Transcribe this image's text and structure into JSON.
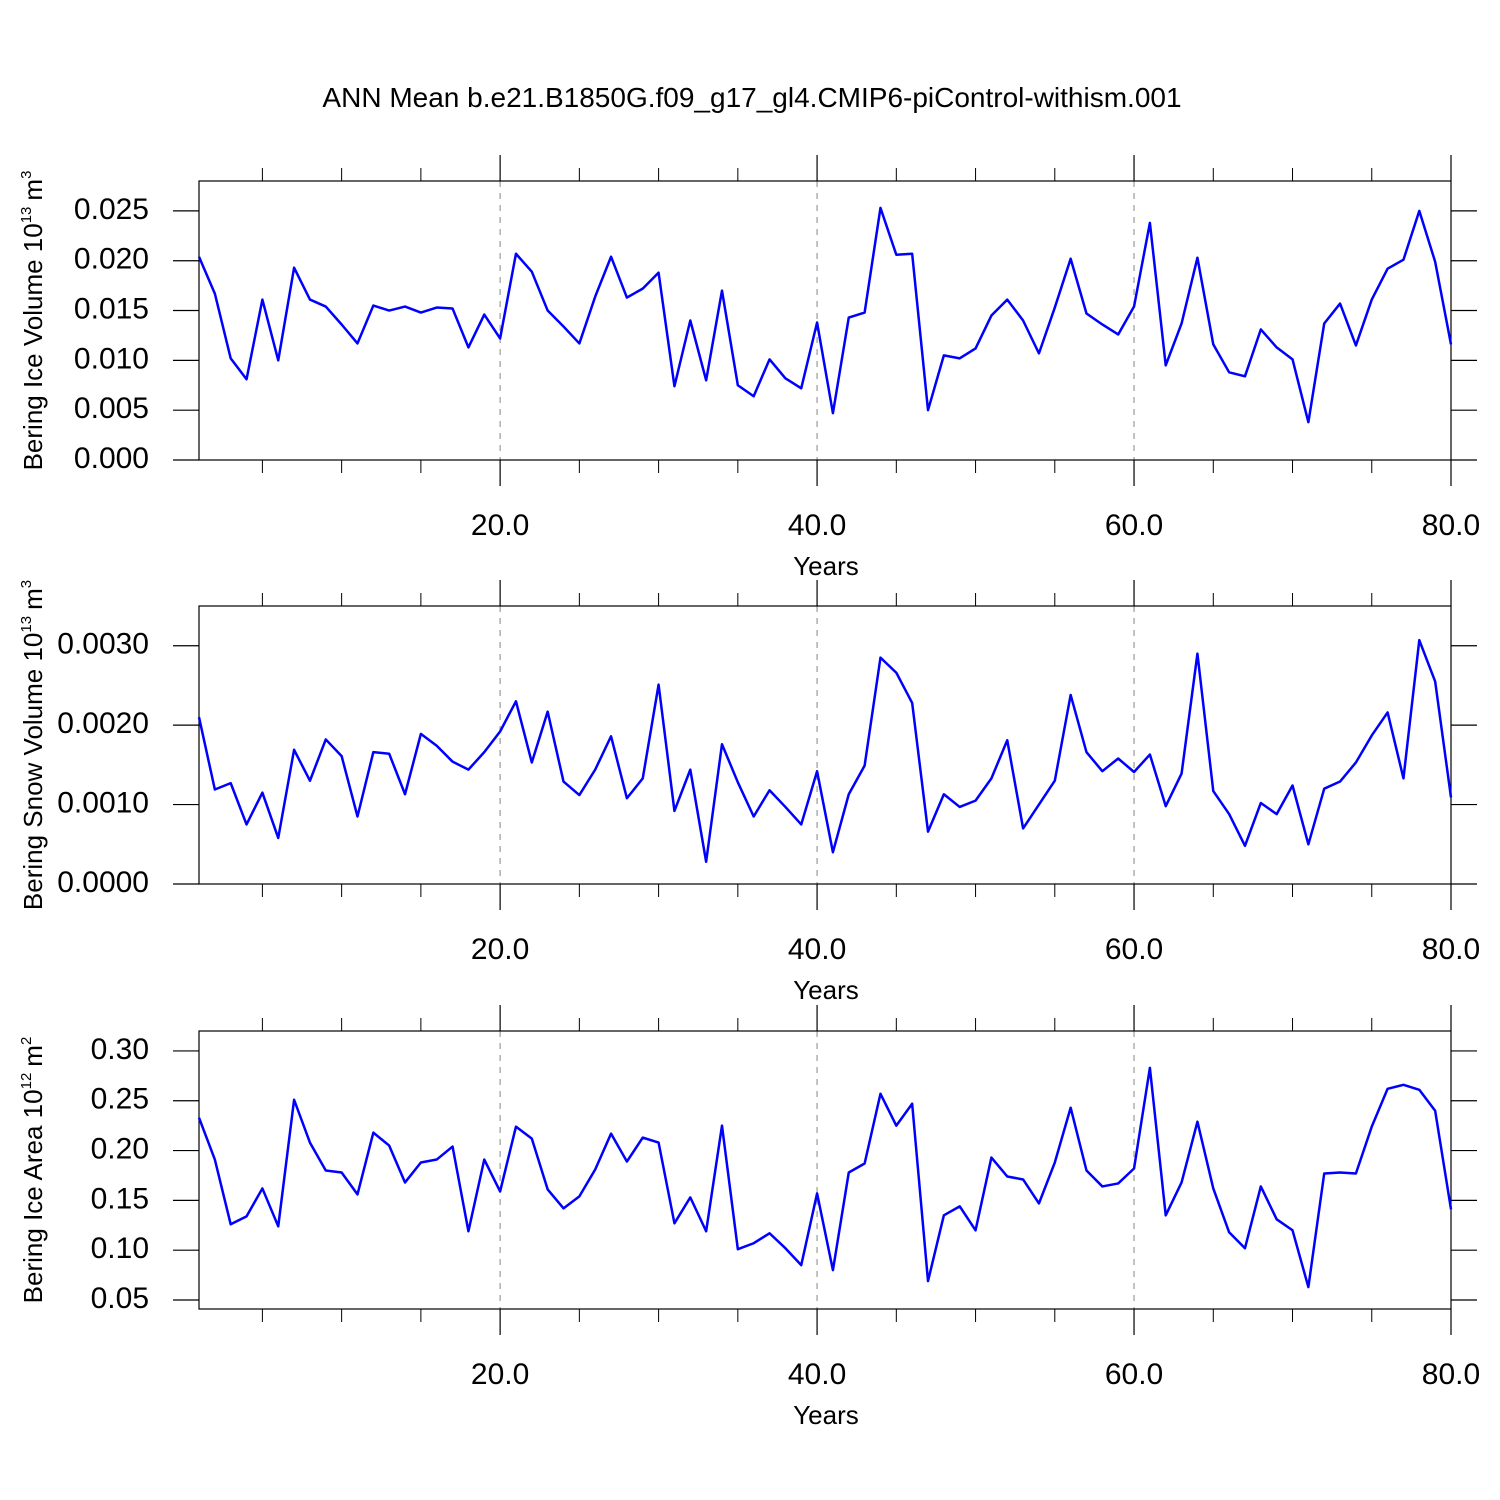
{
  "chart_data": [
    {
      "type": "line",
      "title": "ANN Mean b.e21.B1850G.f09_g17_gl4.CMIP6-piControl-withism.001",
      "ylabel": {
        "text": "Bering Ice Volume 10",
        "exponent": "13",
        "unit": "m",
        "unit_exponent": "3"
      },
      "xlabel": "Years",
      "color": "#0000ff",
      "grid": true,
      "x": [
        1,
        2,
        3,
        4,
        5,
        6,
        7,
        8,
        9,
        10,
        11,
        12,
        13,
        14,
        15,
        16,
        17,
        18,
        19,
        20,
        21,
        22,
        23,
        24,
        25,
        26,
        27,
        28,
        29,
        30,
        31,
        32,
        33,
        34,
        35,
        36,
        37,
        38,
        39,
        40,
        41,
        42,
        43,
        44,
        45,
        46,
        47,
        48,
        49,
        50,
        51,
        52,
        53,
        54,
        55,
        56,
        57,
        58,
        59,
        60,
        61,
        62,
        63,
        64,
        65,
        66,
        67,
        68,
        69,
        70,
        71,
        72,
        73,
        74,
        75,
        76,
        77,
        78,
        79,
        80
      ],
      "values": [
        0.0204,
        0.0167,
        0.0102,
        0.0081,
        0.0161,
        0.01,
        0.0193,
        0.0161,
        0.0154,
        0.0136,
        0.0117,
        0.0155,
        0.015,
        0.0154,
        0.0148,
        0.0153,
        0.0152,
        0.0113,
        0.0146,
        0.0122,
        0.0207,
        0.0189,
        0.015,
        0.0134,
        0.0117,
        0.0164,
        0.0204,
        0.0163,
        0.0172,
        0.0188,
        0.0074,
        0.014,
        0.008,
        0.017,
        0.0075,
        0.0064,
        0.0101,
        0.0082,
        0.0072,
        0.0138,
        0.0047,
        0.0143,
        0.0148,
        0.0253,
        0.0206,
        0.0207,
        0.005,
        0.0105,
        0.0102,
        0.0112,
        0.0145,
        0.0161,
        0.014,
        0.0107,
        0.0153,
        0.0202,
        0.0147,
        0.0136,
        0.0126,
        0.0154,
        0.0238,
        0.0095,
        0.0137,
        0.0203,
        0.0116,
        0.0088,
        0.0084,
        0.0131,
        0.0113,
        0.0101,
        0.0038,
        0.0137,
        0.0157,
        0.0115,
        0.0161,
        0.0192,
        0.0201,
        0.025,
        0.0199,
        0.0116
      ],
      "xlim": [
        1,
        80
      ],
      "ylim": [
        0,
        0.028
      ],
      "xticks": [
        {
          "value": 20,
          "label": "20.0"
        },
        {
          "value": 40,
          "label": "40.0"
        },
        {
          "value": 60,
          "label": "60.0"
        },
        {
          "value": 80,
          "label": "80.0"
        }
      ],
      "xminorticks": [
        5,
        10,
        15,
        25,
        30,
        35,
        45,
        50,
        55,
        65,
        70,
        75
      ],
      "yticks": [
        {
          "value": 0,
          "label": "0.000"
        },
        0.005,
        {
          "value": 0.01,
          "label": "0.010"
        },
        0.015,
        {
          "value": 0.02,
          "label": "0.020"
        },
        0.025
      ]
    },
    {
      "type": "line",
      "ylabel": {
        "text": "Bering Snow Volume 10",
        "exponent": "13",
        "unit": "m",
        "unit_exponent": "3"
      },
      "xlabel": "Years",
      "color": "#0000ff",
      "grid": true,
      "x": [
        1,
        2,
        3,
        4,
        5,
        6,
        7,
        8,
        9,
        10,
        11,
        12,
        13,
        14,
        15,
        16,
        17,
        18,
        19,
        20,
        21,
        22,
        23,
        24,
        25,
        26,
        27,
        28,
        29,
        30,
        31,
        32,
        33,
        34,
        35,
        36,
        37,
        38,
        39,
        40,
        41,
        42,
        43,
        44,
        45,
        46,
        47,
        48,
        49,
        50,
        51,
        52,
        53,
        54,
        55,
        56,
        57,
        58,
        59,
        60,
        61,
        62,
        63,
        64,
        65,
        66,
        67,
        68,
        69,
        70,
        71,
        72,
        73,
        74,
        75,
        76,
        77,
        78,
        79,
        80
      ],
      "values": [
        0.0021,
        0.00119,
        0.00127,
        0.00075,
        0.00115,
        0.00058,
        0.00169,
        0.0013,
        0.00182,
        0.00161,
        0.00085,
        0.00166,
        0.00164,
        0.00113,
        0.00189,
        0.00174,
        0.00154,
        0.00144,
        0.00166,
        0.00192,
        0.0023,
        0.00153,
        0.00217,
        0.00129,
        0.00112,
        0.00144,
        0.00186,
        0.00108,
        0.00133,
        0.00251,
        0.00092,
        0.00144,
        0.00028,
        0.00176,
        0.00128,
        0.00085,
        0.00118,
        0.00097,
        0.00075,
        0.00142,
        0.0004,
        0.00113,
        0.00149,
        0.00285,
        0.00266,
        0.00228,
        0.00066,
        0.00113,
        0.00097,
        0.00105,
        0.00133,
        0.00181,
        0.0007,
        0.001,
        0.0013,
        0.00238,
        0.00166,
        0.00142,
        0.00158,
        0.00141,
        0.00163,
        0.00098,
        0.00139,
        0.0029,
        0.00117,
        0.00088,
        0.00048,
        0.00102,
        0.00088,
        0.00124,
        0.0005,
        0.0012,
        0.00129,
        0.00153,
        0.00187,
        0.00216,
        0.00133,
        0.00307,
        0.00255,
        0.00109
      ],
      "xlim": [
        1,
        80
      ],
      "ylim": [
        0,
        0.0035
      ],
      "xticks": [
        {
          "value": 20,
          "label": "20.0"
        },
        {
          "value": 40,
          "label": "40.0"
        },
        {
          "value": 60,
          "label": "60.0"
        },
        {
          "value": 80,
          "label": "80.0"
        }
      ],
      "xminorticks": [
        5,
        10,
        15,
        25,
        30,
        35,
        45,
        50,
        55,
        65,
        70,
        75
      ],
      "yticks": [
        {
          "value": 0,
          "label": "0.0000"
        },
        {
          "value": 0.001,
          "label": "0.0010"
        },
        {
          "value": 0.002,
          "label": "0.0020"
        },
        {
          "value": 0.003,
          "label": "0.0030"
        }
      ]
    },
    {
      "type": "line",
      "ylabel": {
        "text": "Bering Ice Area 10",
        "exponent": "12",
        "unit": "m",
        "unit_exponent": "2"
      },
      "xlabel": "Years",
      "color": "#0000ff",
      "grid": true,
      "x": [
        1,
        2,
        3,
        4,
        5,
        6,
        7,
        8,
        9,
        10,
        11,
        12,
        13,
        14,
        15,
        16,
        17,
        18,
        19,
        20,
        21,
        22,
        23,
        24,
        25,
        26,
        27,
        28,
        29,
        30,
        31,
        32,
        33,
        34,
        35,
        36,
        37,
        38,
        39,
        40,
        41,
        42,
        43,
        44,
        45,
        46,
        47,
        48,
        49,
        50,
        51,
        52,
        53,
        54,
        55,
        56,
        57,
        58,
        59,
        60,
        61,
        62,
        63,
        64,
        65,
        66,
        67,
        68,
        69,
        70,
        71,
        72,
        73,
        74,
        75,
        76,
        77,
        78,
        79,
        80
      ],
      "values": [
        0.233,
        0.191,
        0.126,
        0.134,
        0.162,
        0.124,
        0.251,
        0.208,
        0.18,
        0.178,
        0.156,
        0.218,
        0.205,
        0.168,
        0.188,
        0.191,
        0.204,
        0.119,
        0.191,
        0.159,
        0.224,
        0.212,
        0.161,
        0.142,
        0.154,
        0.181,
        0.217,
        0.189,
        0.213,
        0.208,
        0.127,
        0.153,
        0.119,
        0.225,
        0.101,
        0.107,
        0.117,
        0.102,
        0.085,
        0.157,
        0.08,
        0.178,
        0.187,
        0.257,
        0.225,
        0.247,
        0.069,
        0.135,
        0.144,
        0.12,
        0.193,
        0.174,
        0.171,
        0.147,
        0.188,
        0.243,
        0.18,
        0.164,
        0.167,
        0.182,
        0.283,
        0.135,
        0.168,
        0.229,
        0.162,
        0.118,
        0.102,
        0.164,
        0.131,
        0.12,
        0.063,
        0.177,
        0.178,
        0.177,
        0.224,
        0.262,
        0.266,
        0.261,
        0.24,
        0.141
      ],
      "xlim": [
        1,
        80
      ],
      "ylim": [
        0.041,
        0.32
      ],
      "xticks": [
        {
          "value": 20,
          "label": "20.0"
        },
        {
          "value": 40,
          "label": "40.0"
        },
        {
          "value": 60,
          "label": "60.0"
        },
        {
          "value": 80,
          "label": "80.0"
        }
      ],
      "xminorticks": [
        5,
        10,
        15,
        25,
        30,
        35,
        45,
        50,
        55,
        65,
        70,
        75
      ],
      "yticks": [
        0.05,
        {
          "value": 0.1,
          "label": "0.10"
        },
        0.15,
        {
          "value": 0.2,
          "label": "0.20"
        },
        0.25,
        {
          "value": 0.3,
          "label": "0.30"
        }
      ]
    }
  ]
}
